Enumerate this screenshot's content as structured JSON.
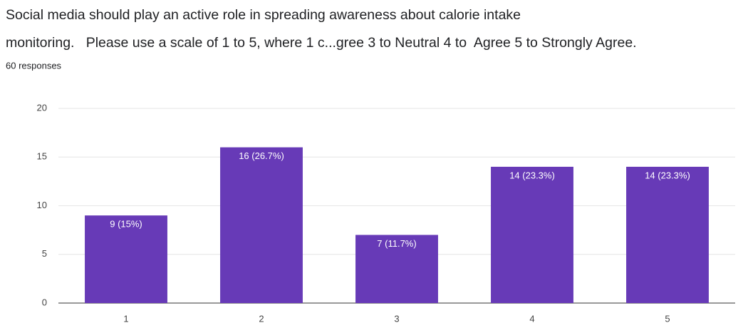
{
  "chart_data": {
    "type": "bar",
    "title": [
      "Social media should play an active role in spreading awareness about calorie intake",
      "monitoring.   Please use a scale of 1 to 5, where 1 c...gree 3 to Neutral 4 to  Agree 5 to Strongly Agree."
    ],
    "subtitle": "60 responses",
    "categories": [
      "1",
      "2",
      "3",
      "4",
      "5"
    ],
    "values": [
      9,
      16,
      7,
      14,
      14
    ],
    "value_labels": [
      "9 (15%)",
      "16 (26.7%)",
      "7 (11.7%)",
      "14 (23.3%)",
      "14 (23.3%)"
    ],
    "color": "#673ab7",
    "ylim": [
      0,
      20
    ],
    "yticks": [
      0,
      5,
      10,
      15,
      20
    ],
    "grid": true
  }
}
